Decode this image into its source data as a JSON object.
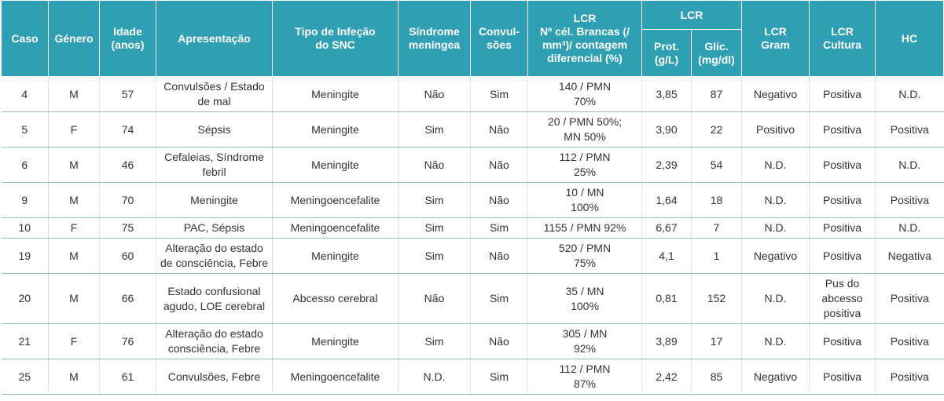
{
  "header": {
    "group": "LCR",
    "columns": [
      [
        "Caso"
      ],
      [
        "Género"
      ],
      [
        "Idade",
        "(anos)"
      ],
      [
        "Apresentação"
      ],
      [
        "Tipo de Infeção",
        "do SNC"
      ],
      [
        "Síndrome",
        "meníngea"
      ],
      [
        "Convul-",
        "sões"
      ],
      [
        "LCR",
        "Nº cél. Brancas (/",
        "mm³)/ contagem",
        "diferencial (%)"
      ],
      [
        "Prot.",
        "(g/L)"
      ],
      [
        "Glic.",
        "(mg/dl)"
      ],
      [
        "LCR",
        "Gram"
      ],
      [
        "LCR",
        "Cultura"
      ],
      [
        "HC"
      ]
    ]
  },
  "table": {
    "rows": [
      [
        [
          "4"
        ],
        [
          "M"
        ],
        [
          "57"
        ],
        [
          "Convulsões / Estado",
          "de mal"
        ],
        [
          "Meningite"
        ],
        [
          "Não"
        ],
        [
          "Sim"
        ],
        [
          "140  / PMN",
          "70%"
        ],
        [
          "3,85"
        ],
        [
          "87"
        ],
        [
          "Negativo"
        ],
        [
          "Positiva"
        ],
        [
          "N.D."
        ]
      ],
      [
        [
          "5"
        ],
        [
          "F"
        ],
        [
          "74"
        ],
        [
          "Sépsis"
        ],
        [
          "Meningite"
        ],
        [
          "Sim"
        ],
        [
          "Não"
        ],
        [
          "20 / PMN 50%;",
          "MN 50%"
        ],
        [
          "3,90"
        ],
        [
          "22"
        ],
        [
          "Positivo"
        ],
        [
          "Positiva"
        ],
        [
          "Positiva"
        ]
      ],
      [
        [
          "6"
        ],
        [
          "M"
        ],
        [
          "46"
        ],
        [
          "Cefaleias, Síndrome",
          "febril"
        ],
        [
          "Meningite"
        ],
        [
          "Não"
        ],
        [
          "Não"
        ],
        [
          "112 / PMN",
          "25%"
        ],
        [
          "2,39"
        ],
        [
          "54"
        ],
        [
          "N.D."
        ],
        [
          "Positiva"
        ],
        [
          "N.D."
        ]
      ],
      [
        [
          "9"
        ],
        [
          "M"
        ],
        [
          "70"
        ],
        [
          "Meningite"
        ],
        [
          "Meningoencefalite"
        ],
        [
          "Sim"
        ],
        [
          "Não"
        ],
        [
          "10  / MN",
          "100%"
        ],
        [
          "1,64"
        ],
        [
          "18"
        ],
        [
          "N.D."
        ],
        [
          "Positiva"
        ],
        [
          "Positiva"
        ]
      ],
      [
        [
          "10"
        ],
        [
          "F"
        ],
        [
          "75"
        ],
        [
          "PAC, Sépsis"
        ],
        [
          "Meningoencefalite"
        ],
        [
          "Sim"
        ],
        [
          "Sim"
        ],
        [
          "1155  / PMN 92%"
        ],
        [
          "6,67"
        ],
        [
          "7"
        ],
        [
          "N.D."
        ],
        [
          "Positiva"
        ],
        [
          "N.D."
        ]
      ],
      [
        [
          "19"
        ],
        [
          "M"
        ],
        [
          "60"
        ],
        [
          "Alteração do estado",
          "de consciência, Febre"
        ],
        [
          "Meningite"
        ],
        [
          "Sim"
        ],
        [
          "Não"
        ],
        [
          "520 / PMN",
          "75%"
        ],
        [
          "4,1"
        ],
        [
          "1"
        ],
        [
          "Negativo"
        ],
        [
          "Positiva"
        ],
        [
          "Negativa"
        ]
      ],
      [
        [
          "20"
        ],
        [
          "M"
        ],
        [
          "66"
        ],
        [
          "Estado confusional",
          "agudo, LOE cerebral"
        ],
        [
          "Abcesso cerebral"
        ],
        [
          "Não"
        ],
        [
          "Sim"
        ],
        [
          "35 /  MN",
          "100%"
        ],
        [
          "0,81"
        ],
        [
          "152"
        ],
        [
          "N.D."
        ],
        [
          "Pus do",
          "abcesso",
          "positiva"
        ],
        [
          "Positiva"
        ]
      ],
      [
        [
          "21"
        ],
        [
          "F"
        ],
        [
          "76"
        ],
        [
          "Alteração do estado",
          "consciência, Febre"
        ],
        [
          "Meningite"
        ],
        [
          "Sim"
        ],
        [
          "Não"
        ],
        [
          "305  / MN",
          "92%"
        ],
        [
          "3,89"
        ],
        [
          "17"
        ],
        [
          "N.D."
        ],
        [
          "Positiva"
        ],
        [
          "Positiva"
        ]
      ],
      [
        [
          "25"
        ],
        [
          "M"
        ],
        [
          "61"
        ],
        [
          "Convulsões, Febre"
        ],
        [
          "Meningoencefalite"
        ],
        [
          "N.D."
        ],
        [
          "Sim"
        ],
        [
          "112 /  PMN",
          "87%"
        ],
        [
          "2,42"
        ],
        [
          "85"
        ],
        [
          "Negativo"
        ],
        [
          "Positiva"
        ],
        [
          "Positiva"
        ]
      ]
    ]
  }
}
